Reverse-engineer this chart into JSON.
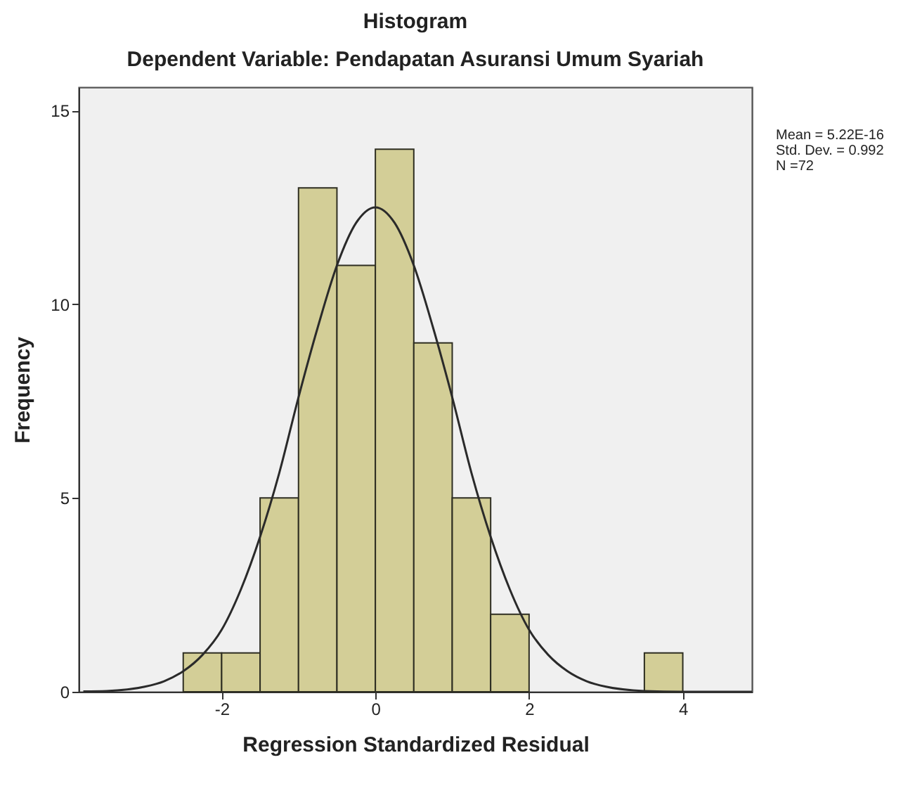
{
  "chart_data": {
    "type": "histogram",
    "title": "Histogram",
    "subtitle": "Dependent Variable: Pendapatan Asuransi Umum Syariah",
    "xlabel": "Regression Standardized Residual",
    "ylabel": "Frequency",
    "bins": [
      -2.5,
      -2,
      -1.5,
      -1,
      -0.5,
      0,
      0.5,
      1,
      1.5,
      2,
      2.5,
      3,
      3.5,
      4
    ],
    "values": [
      1,
      1,
      5,
      13,
      11,
      14,
      9,
      5,
      2,
      null,
      null,
      null,
      1
    ],
    "color": "#d3ce97",
    "series": [
      {
        "type": "line",
        "color": "#2a2a2a",
        "x": [
          -3.8,
          -3.5,
          -3,
          -2.75,
          -2.5,
          -2.25,
          -2,
          -1.75,
          -1.5,
          -1.25,
          -1,
          -0.75,
          -0.5,
          -0.25,
          0,
          0.25,
          0.5,
          0.75,
          1,
          1.25,
          1.5,
          1.75,
          2,
          2.25,
          2.5,
          2.75,
          3,
          3.5,
          4,
          4.9
        ],
        "values": [
          0.01,
          0.02,
          0.13,
          0.27,
          0.53,
          0.95,
          1.6,
          2.64,
          4.0,
          5.65,
          7.6,
          9.4,
          11.0,
          12.1,
          12.5,
          12.1,
          11.0,
          9.4,
          7.6,
          5.65,
          4.0,
          2.64,
          1.6,
          0.95,
          0.53,
          0.27,
          0.13,
          0.02,
          0.0,
          0.0
        ]
      }
    ],
    "xlim": [
      -3.86,
      4.9
    ],
    "xticks": [
      -2,
      0,
      2,
      4
    ],
    "ylim": [
      0,
      15.6
    ],
    "yticks": [
      0,
      5,
      10,
      15
    ],
    "grid": false,
    "annotations": [
      "Mean = 5.22E-16",
      "Std. Dev. = 0.992",
      "N =72"
    ]
  }
}
